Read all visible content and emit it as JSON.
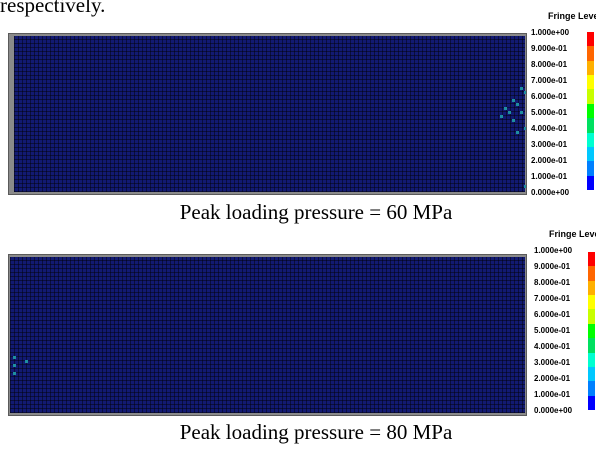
{
  "top_text": "respectively.",
  "legend": {
    "title": "Fringe Levels",
    "levels": [
      "1.000e+00",
      "9.000e-01",
      "8.000e-01",
      "7.000e-01",
      "6.000e-01",
      "5.000e-01",
      "4.000e-01",
      "3.000e-01",
      "2.000e-01",
      "1.000e-01",
      "0.000e+00"
    ],
    "colors": [
      "#ff0000",
      "#ff6600",
      "#ffb000",
      "#ffff00",
      "#c8ff00",
      "#00ff00",
      "#00e060",
      "#00ffd0",
      "#00c8ff",
      "#0080ff",
      "#0000ff"
    ]
  },
  "panels": [
    {
      "caption": "Peak loading pressure = 60 MPa"
    },
    {
      "caption": "Peak loading pressure = 80 MPa"
    }
  ],
  "mesh_color": "#121a72",
  "damage_color": "#1e8fa0"
}
